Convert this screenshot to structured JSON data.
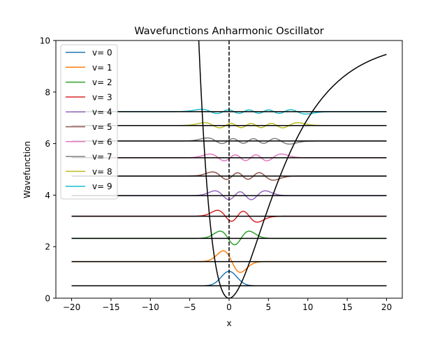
{
  "chart_data": {
    "type": "line",
    "title": "Wavefunctions Anharmonic Oscillator",
    "xlabel": "x",
    "ylabel": "Wavefunction",
    "xlim": [
      -22,
      22
    ],
    "ylim": [
      0,
      10
    ],
    "x_ticks": [
      -20,
      -15,
      -10,
      -5,
      0,
      5,
      10,
      15,
      20
    ],
    "y_ticks": [
      0,
      2,
      4,
      6,
      8,
      10
    ],
    "grid": false,
    "legend_position": "top-left",
    "potential": {
      "type": "morse",
      "well_depth": 10,
      "a": 0.18,
      "x_range": [
        -20,
        20
      ],
      "color": "#000000"
    },
    "equilibrium_line": {
      "x": 0,
      "style": "dashed",
      "color": "#000000"
    },
    "levels_x_range": [
      -20,
      20
    ],
    "series": [
      {
        "name": "v= 0",
        "color": "#1f77b4",
        "energy": 0.48,
        "amplitude": 0.75
      },
      {
        "name": "v= 1",
        "color": "#ff7f0e",
        "energy": 1.42,
        "amplitude": 0.65
      },
      {
        "name": "v= 2",
        "color": "#2ca02c",
        "energy": 2.32,
        "amplitude": 0.55
      },
      {
        "name": "v= 3",
        "color": "#d62728",
        "energy": 3.18,
        "amplitude": 0.55
      },
      {
        "name": "v= 4",
        "color": "#9467bd",
        "energy": 3.98,
        "amplitude": 0.52
      },
      {
        "name": "v= 5",
        "color": "#8c564b",
        "energy": 4.74,
        "amplitude": 0.5
      },
      {
        "name": "v= 6",
        "color": "#e377c2",
        "energy": 5.45,
        "amplitude": 0.5
      },
      {
        "name": "v= 7",
        "color": "#7f7f7f",
        "energy": 6.1,
        "amplitude": 0.45
      },
      {
        "name": "v= 8",
        "color": "#bcbd22",
        "energy": 6.7,
        "amplitude": 0.45
      },
      {
        "name": "v= 9",
        "color": "#17becf",
        "energy": 7.24,
        "amplitude": 0.4
      }
    ]
  }
}
